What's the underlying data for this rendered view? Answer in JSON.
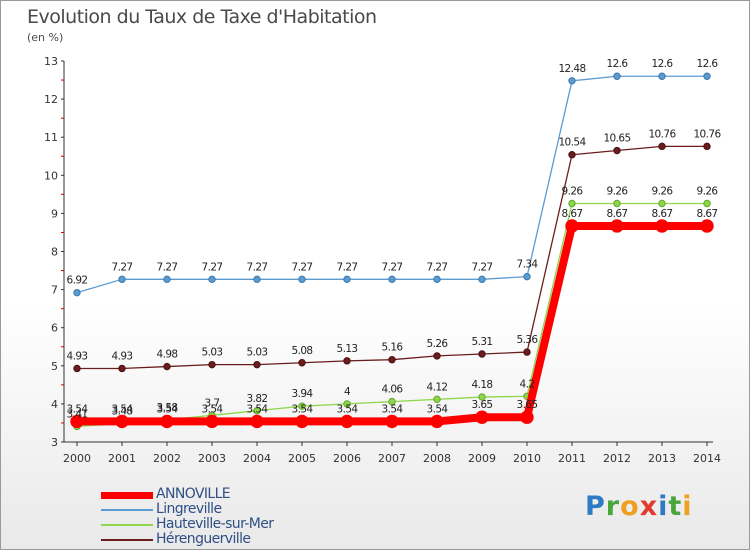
{
  "title": "Evolution du Taux de Taxe d'Habitation",
  "subtitle": "(en %)",
  "brand": {
    "text": "Proxiti",
    "colors": [
      "#2e7bc4",
      "#4aa63c",
      "#f0a020",
      "#e23a2e",
      "#2e7bc4",
      "#4aa63c",
      "#f0a020"
    ]
  },
  "chart_data": {
    "type": "line",
    "title": "Evolution du Taux de Taxe d'Habitation",
    "ylabel": "(en %)",
    "xlabel": "",
    "x": [
      2000,
      2001,
      2002,
      2003,
      2004,
      2005,
      2006,
      2007,
      2008,
      2009,
      2010,
      2011,
      2012,
      2013,
      2014
    ],
    "ylim": [
      3,
      13
    ],
    "yticks": [
      3,
      4,
      5,
      6,
      7,
      8,
      9,
      10,
      11,
      12,
      13
    ],
    "grid": false,
    "legend_position": "bottom-left",
    "series": [
      {
        "name": "Lingreville",
        "color": "#5b9bd0",
        "values": [
          6.92,
          7.27,
          7.27,
          7.27,
          7.27,
          7.27,
          7.27,
          7.27,
          7.27,
          7.27,
          7.34,
          12.48,
          12.6,
          12.6,
          12.6
        ],
        "labels": [
          "6.92",
          "7.27",
          "7.27",
          "7.27",
          "7.27",
          "7.27",
          "7.27",
          "7.27",
          "7.27",
          "7.27",
          "7.34",
          "12.48",
          "12.6",
          "12.6",
          "12.6"
        ]
      },
      {
        "name": "Hérenguerville",
        "color": "#6b1d1d",
        "values": [
          4.93,
          4.93,
          4.98,
          5.03,
          5.03,
          5.08,
          5.13,
          5.16,
          5.26,
          5.31,
          5.36,
          10.54,
          10.65,
          10.76,
          10.76
        ],
        "labels": [
          "4.93",
          "4.93",
          "4.98",
          "5.03",
          "5.03",
          "5.08",
          "5.13",
          "5.16",
          "5.26",
          "5.31",
          "5.36",
          "10.54",
          "10.65",
          "10.76",
          "10.76"
        ]
      },
      {
        "name": "Hauteville-sur-Mer",
        "color": "#8fd64a",
        "values": [
          3.41,
          3.48,
          3.58,
          3.7,
          3.82,
          3.94,
          4,
          4.06,
          4.12,
          4.18,
          4.2,
          9.26,
          9.26,
          9.26,
          9.26
        ],
        "labels": [
          "3.41",
          "3.48",
          "3.58",
          "3.7",
          "3.82",
          "3.94",
          "4",
          "4.06",
          "4.12",
          "4.18",
          "4.2",
          "9.26",
          "9.26",
          "9.26",
          "9.26"
        ]
      },
      {
        "name": "ANNOVILLE",
        "color": "#ff0000",
        "values": [
          3.54,
          3.54,
          3.54,
          3.54,
          3.54,
          3.54,
          3.54,
          3.54,
          3.54,
          3.65,
          3.65,
          8.67,
          8.67,
          8.67,
          8.67
        ],
        "labels": [
          "3.54",
          "3.54",
          "3.54",
          "3.54",
          "3.54",
          "3.54",
          "3.54",
          "3.54",
          "3.54",
          "3.65",
          "3.65",
          "8.67",
          "8.67",
          "8.67",
          "8.67"
        ]
      }
    ],
    "legend": [
      "ANNOVILLE",
      "Lingreville",
      "Hauteville-sur-Mer",
      "Hérenguerville"
    ]
  }
}
